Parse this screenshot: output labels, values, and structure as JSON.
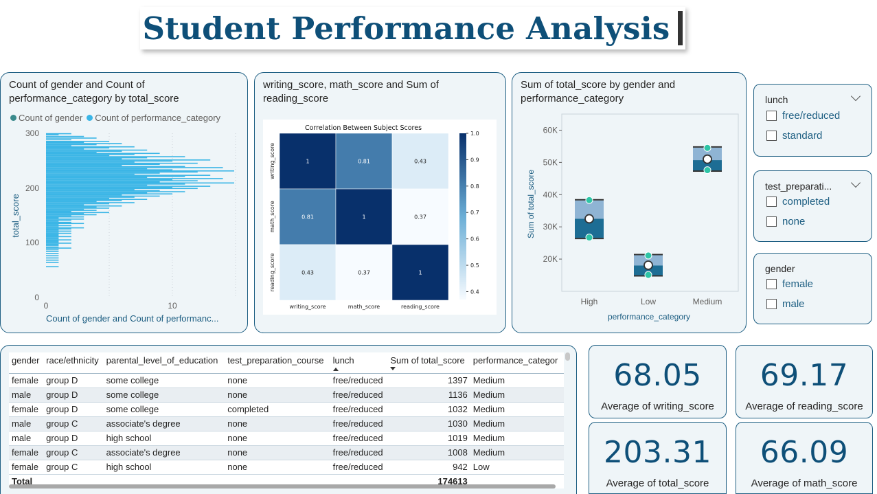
{
  "page_title": "Student Performance Analysis",
  "colors": {
    "accent": "#0e4f78",
    "border": "#1d5e82",
    "bar": "#3ab5e6",
    "card_bg": "#eff5f8",
    "teal": "#3a8a8c"
  },
  "chart1": {
    "title": "Count of gender and Count of performance_category by total_score",
    "legend": [
      {
        "label": "Count of gender",
        "color": "#3a8a8c"
      },
      {
        "label": "Count of performance_category",
        "color": "#3ab5e6"
      }
    ],
    "y_title": "total_score",
    "x_title": "Count of gender and Count of performanc...",
    "y_ticks": [
      "300",
      "200",
      "100",
      "0"
    ],
    "x_ticks": [
      "0",
      "10"
    ]
  },
  "chart_data": [
    {
      "type": "bar",
      "orientation": "horizontal",
      "title": "Count of gender and Count of performance_category by total_score",
      "xlabel": "Count of gender and Count of performanc...",
      "ylabel": "total_score",
      "ylim": [
        0,
        300
      ],
      "xlim": [
        0,
        15
      ],
      "series_name": "Count of performance_category",
      "y": [
        299,
        297,
        294,
        291,
        288,
        285,
        283,
        281,
        279,
        277,
        275,
        273,
        271,
        269,
        267,
        265,
        263,
        261,
        259,
        257,
        255,
        253,
        251,
        249,
        247,
        245,
        243,
        241,
        239,
        237,
        235,
        233,
        231,
        229,
        227,
        225,
        223,
        221,
        219,
        217,
        215,
        213,
        211,
        209,
        207,
        205,
        203,
        201,
        199,
        197,
        195,
        193,
        191,
        189,
        187,
        185,
        183,
        181,
        179,
        177,
        175,
        173,
        171,
        169,
        167,
        165,
        163,
        161,
        159,
        157,
        155,
        153,
        151,
        149,
        147,
        145,
        143,
        141,
        139,
        137,
        135,
        133,
        131,
        129,
        127,
        125,
        123,
        121,
        119,
        117,
        115,
        113,
        111,
        109,
        107,
        105,
        103,
        101,
        99,
        97,
        95,
        92,
        90,
        87,
        84,
        80,
        76,
        72,
        68,
        64,
        56
      ],
      "x": [
        2,
        1,
        3,
        4,
        2,
        5,
        3,
        6,
        4,
        2,
        7,
        5,
        3,
        8,
        6,
        4,
        9,
        7,
        5,
        11,
        8,
        6,
        13,
        10,
        7,
        12,
        9,
        6,
        11,
        14,
        8,
        10,
        15,
        12,
        9,
        7,
        13,
        11,
        8,
        14,
        10,
        12,
        9,
        15,
        11,
        8,
        13,
        10,
        12,
        7,
        9,
        11,
        8,
        10,
        6,
        9,
        7,
        5,
        8,
        6,
        4,
        7,
        5,
        3,
        6,
        4,
        5,
        3,
        4,
        2,
        5,
        3,
        4,
        2,
        3,
        1,
        3,
        2,
        1,
        2,
        3,
        1,
        2,
        1,
        3,
        2,
        1,
        2,
        1,
        2,
        1,
        1,
        2,
        1,
        1,
        2,
        1,
        1,
        2,
        1,
        1,
        1,
        2,
        1,
        1,
        1,
        1,
        1,
        1,
        1,
        1
      ]
    },
    {
      "type": "heatmap",
      "title": "Correlation Between Subject Scores",
      "rows": [
        "writing_score",
        "math_score",
        "reading_score"
      ],
      "cols": [
        "writing_score",
        "math_score",
        "reading_score"
      ],
      "values": [
        [
          1,
          0.81,
          0.43
        ],
        [
          0.81,
          1,
          0.37
        ],
        [
          0.43,
          0.37,
          1
        ]
      ],
      "colorbar_ticks": [
        "1.0",
        "0.9",
        "0.8",
        "0.7",
        "0.6",
        "0.5",
        "0.4"
      ],
      "range": [
        0.37,
        1.0
      ]
    },
    {
      "type": "boxplot",
      "title": "Sum of total_score by gender and performance_category",
      "xlabel": "performance_category",
      "ylabel": "Sum of total_score",
      "categories": [
        "High",
        "Low",
        "Medium"
      ],
      "y_ticks": [
        "60K",
        "50K",
        "40K",
        "30K",
        "20K"
      ],
      "ylim": [
        10000,
        65000
      ],
      "boxes": [
        {
          "category": "High",
          "max": 38400,
          "q3": 38200,
          "median": 32500,
          "q1": 26600,
          "min": 26400,
          "points": [
            38300,
            26700
          ],
          "mean": 32500
        },
        {
          "category": "Low",
          "max": 21400,
          "q3": 21200,
          "median": 18000,
          "q1": 15000,
          "min": 14800,
          "points": [
            21100,
            15100
          ],
          "mean": 18100
        },
        {
          "category": "Medium",
          "max": 54800,
          "q3": 54600,
          "median": 50700,
          "q1": 47500,
          "min": 47300,
          "points": [
            54500,
            47600
          ],
          "mean": 51000
        }
      ]
    }
  ],
  "chart2": {
    "title": "writing_score, math_score and Sum of reading_score"
  },
  "chart3": {
    "title": "Sum of total_score by gender and performance_category"
  },
  "slicers": [
    {
      "title": "lunch",
      "items": [
        "free/reduced",
        "standard"
      ]
    },
    {
      "title": "test_preparati...",
      "items": [
        "completed",
        "none"
      ]
    },
    {
      "title": "gender",
      "items": [
        "female",
        "male"
      ]
    }
  ],
  "table": {
    "headers": [
      "gender",
      "race/ethnicity",
      "parental_level_of_education",
      "test_preparation_course",
      "lunch",
      "Sum of total_score",
      "performance_categor"
    ],
    "rows": [
      [
        "female",
        "group D",
        "some college",
        "none",
        "free/reduced",
        "1397",
        "Medium"
      ],
      [
        "male",
        "group D",
        "some college",
        "none",
        "free/reduced",
        "1136",
        "Medium"
      ],
      [
        "female",
        "group D",
        "some college",
        "completed",
        "free/reduced",
        "1032",
        "Medium"
      ],
      [
        "male",
        "group C",
        "associate's degree",
        "none",
        "free/reduced",
        "1030",
        "Medium"
      ],
      [
        "male",
        "group D",
        "high school",
        "none",
        "free/reduced",
        "1019",
        "Medium"
      ],
      [
        "female",
        "group C",
        "associate's degree",
        "none",
        "free/reduced",
        "1008",
        "Medium"
      ],
      [
        "female",
        "group C",
        "high school",
        "none",
        "free/reduced",
        "942",
        "Low"
      ]
    ],
    "total_label": "Total",
    "total_value": "174613"
  },
  "kpis": [
    {
      "value": "68.05",
      "label": "Average of writing_score"
    },
    {
      "value": "69.17",
      "label": "Average of reading_score"
    },
    {
      "value": "203.31",
      "label": "Average of total_score"
    },
    {
      "value": "66.09",
      "label": "Average of math_score"
    }
  ]
}
